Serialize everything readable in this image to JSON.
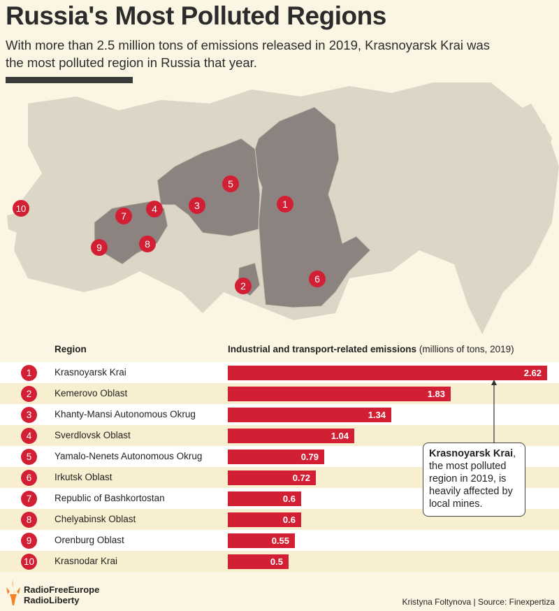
{
  "header": {
    "title": "Russia's Most Polluted Regions",
    "subtitle": "With more than 2.5 million tons of emissions released in 2019, Krasnoyarsk Krai was the most polluted region in Russia that year."
  },
  "map": {
    "markers": [
      "1",
      "2",
      "3",
      "4",
      "5",
      "6",
      "7",
      "8",
      "9",
      "10"
    ],
    "colors": {
      "highlight": "#8c8380",
      "base": "#dcd6c6",
      "marker": "#d21f33"
    }
  },
  "table": {
    "region_header": "Region",
    "value_header": "Industrial and transport-related emissions",
    "value_header_units": "(millions of tons, 2019)"
  },
  "callout": {
    "bold": "Krasnoyarsk Krai",
    "text": ", the most polluted region in 2019, is heavily affected by local mines."
  },
  "footer": {
    "logo_line1": "RadioFreeEurope",
    "logo_line2": "RadioLiberty",
    "credit": "Kristyna Foltynova | Source: Finexpertiza"
  },
  "chart_data": {
    "type": "bar",
    "orientation": "horizontal",
    "title": "Russia's Most Polluted Regions",
    "xlabel": "Industrial and transport-related emissions (millions of tons, 2019)",
    "ylabel": "Region",
    "ranks": [
      "1",
      "2",
      "3",
      "4",
      "5",
      "6",
      "7",
      "8",
      "9",
      "10"
    ],
    "categories": [
      "Krasnoyarsk Krai",
      "Kemerovo Oblast",
      "Khanty-Mansi Autonomous Okrug",
      "Sverdlovsk Oblast",
      "Yamalo-Nenets Autonomous Okrug",
      "Irkutsk Oblast",
      "Republic of Bashkortostan",
      "Chelyabinsk Oblast",
      "Orenburg Oblast",
      "Krasnodar Krai"
    ],
    "values": [
      2.62,
      1.83,
      1.34,
      1.04,
      0.79,
      0.72,
      0.6,
      0.6,
      0.55,
      0.5
    ],
    "value_labels": [
      "2.62",
      "1.83",
      "1.34",
      "1.04",
      "0.79",
      "0.72",
      "0.6",
      "0.6",
      "0.55",
      "0.5"
    ],
    "xlim": [
      0,
      2.62
    ],
    "bar_color": "#d21f33"
  }
}
